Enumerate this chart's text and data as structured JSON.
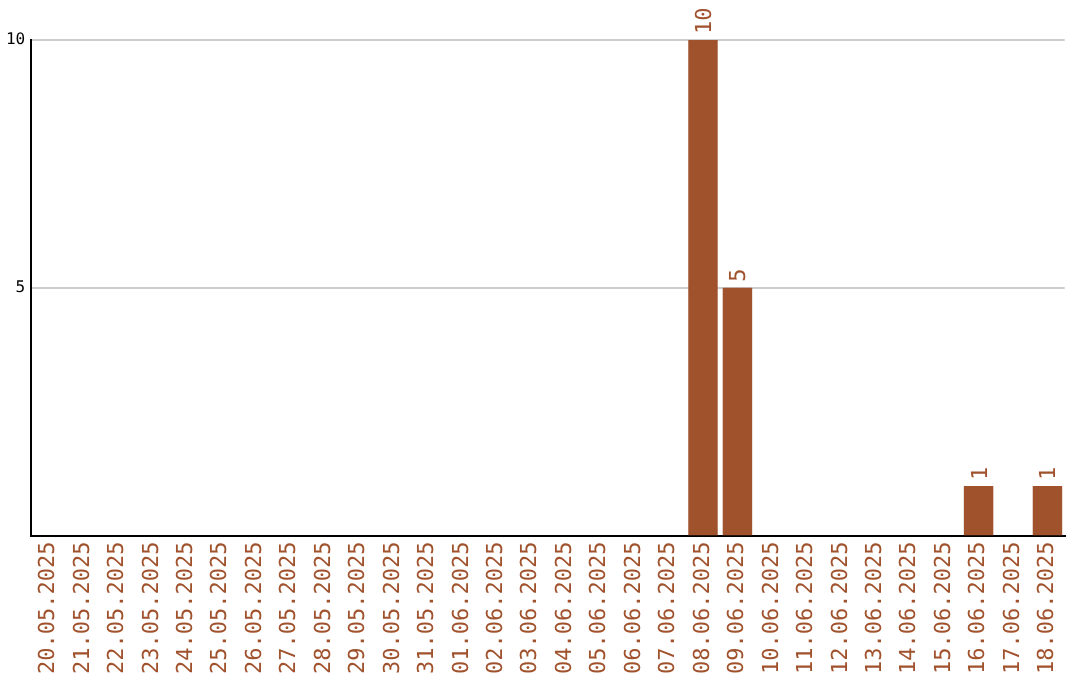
{
  "chart_data": {
    "type": "bar",
    "categories": [
      "20.05.2025",
      "21.05.2025",
      "22.05.2025",
      "23.05.2025",
      "24.05.2025",
      "25.05.2025",
      "26.05.2025",
      "27.05.2025",
      "28.05.2025",
      "29.05.2025",
      "30.05.2025",
      "31.05.2025",
      "01.06.2025",
      "02.06.2025",
      "03.06.2025",
      "04.06.2025",
      "05.06.2025",
      "06.06.2025",
      "07.06.2025",
      "08.06.2025",
      "09.06.2025",
      "10.06.2025",
      "11.06.2025",
      "12.06.2025",
      "13.06.2025",
      "14.06.2025",
      "15.06.2025",
      "16.06.2025",
      "17.06.2025",
      "18.06.2025"
    ],
    "values": [
      0,
      0,
      0,
      0,
      0,
      0,
      0,
      0,
      0,
      0,
      0,
      0,
      0,
      0,
      0,
      0,
      0,
      0,
      0,
      10,
      5,
      0,
      0,
      0,
      0,
      0,
      0,
      1,
      0,
      1
    ],
    "value_labels": [
      null,
      null,
      null,
      null,
      null,
      null,
      null,
      null,
      null,
      null,
      null,
      null,
      null,
      null,
      null,
      null,
      null,
      null,
      null,
      "10",
      "5",
      null,
      null,
      null,
      null,
      null,
      null,
      "1",
      null,
      "1"
    ],
    "color": "#a0522d",
    "ylim": [
      0,
      10
    ],
    "yticks": [
      5,
      10
    ],
    "grid": "y",
    "legend": false
  }
}
